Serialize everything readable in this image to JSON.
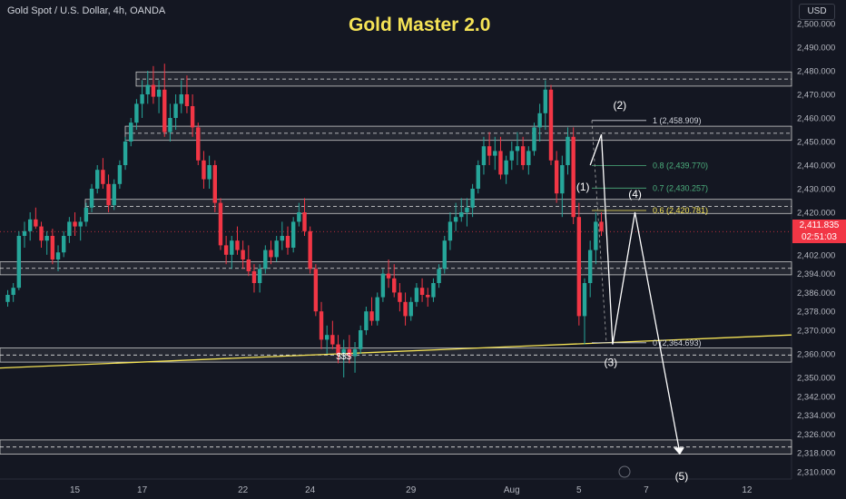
{
  "header": {
    "symbol": "Gold Spot / U.S. Dollar, 4h, OANDA",
    "currency": "USD"
  },
  "title": "Gold Master 2.0",
  "price_badge": {
    "price": "2,411.835",
    "countdown": "02:51:03"
  },
  "colors": {
    "background": "#141722",
    "up": "#26a69a",
    "down": "#f23645",
    "title": "#f5e356",
    "trendline": "#f5e356",
    "zone_border": "#c8c8c8",
    "fib_level": "#4caf7d",
    "fib_highlight": "#f5e356",
    "wave": "#ffffff"
  },
  "chart_data": {
    "type": "candlestick",
    "title": "Gold Master 2.0",
    "xlabel": "",
    "ylabel": "",
    "ylim": [
      2306,
      2504
    ],
    "y_ticks": [
      2310,
      2318,
      2326,
      2334,
      2342,
      2350,
      2360,
      2370,
      2378,
      2386,
      2394,
      2402,
      2410,
      2420,
      2430,
      2440,
      2450,
      2460,
      2470,
      2480,
      2490,
      2500
    ],
    "y_tick_labels": [
      "2,310.000",
      "2,318.000",
      "2,326.000",
      "2,334.000",
      "2,342.000",
      "2,350.000",
      "2,360.000",
      "2,370.000",
      "2,378.000",
      "2,386.000",
      "2,394.000",
      "2,402.000",
      "2,410.000",
      "2,420.000",
      "2,430.000",
      "2,440.000",
      "2,450.000",
      "2,460.000",
      "2,470.000",
      "2,480.000",
      "2,490.000",
      "2,500.000"
    ],
    "x_ticks": [
      {
        "label": "15",
        "index": 12
      },
      {
        "label": "17",
        "index": 24
      },
      {
        "label": "22",
        "index": 42
      },
      {
        "label": "24",
        "index": 54
      },
      {
        "label": "29",
        "index": 72
      },
      {
        "label": "Aug",
        "index": 90
      },
      {
        "label": "5",
        "index": 102
      },
      {
        "label": "7",
        "index": 114
      },
      {
        "label": "12",
        "index": 132
      }
    ],
    "candles": [
      [
        2382,
        2387,
        2380,
        2385
      ],
      [
        2385,
        2390,
        2382,
        2388
      ],
      [
        2388,
        2412,
        2387,
        2410
      ],
      [
        2410,
        2416,
        2405,
        2412
      ],
      [
        2412,
        2420,
        2408,
        2417
      ],
      [
        2417,
        2422,
        2413,
        2414
      ],
      [
        2414,
        2416,
        2405,
        2408
      ],
      [
        2408,
        2412,
        2402,
        2410
      ],
      [
        2410,
        2413,
        2398,
        2400
      ],
      [
        2400,
        2406,
        2395,
        2403
      ],
      [
        2403,
        2412,
        2401,
        2410
      ],
      [
        2410,
        2418,
        2407,
        2416
      ],
      [
        2416,
        2420,
        2410,
        2414
      ],
      [
        2414,
        2418,
        2408,
        2416
      ],
      [
        2416,
        2424,
        2414,
        2422
      ],
      [
        2422,
        2432,
        2420,
        2430
      ],
      [
        2430,
        2440,
        2428,
        2438
      ],
      [
        2438,
        2443,
        2430,
        2432
      ],
      [
        2432,
        2436,
        2420,
        2423
      ],
      [
        2423,
        2434,
        2421,
        2432
      ],
      [
        2432,
        2442,
        2430,
        2440
      ],
      [
        2440,
        2452,
        2438,
        2450
      ],
      [
        2450,
        2460,
        2448,
        2458
      ],
      [
        2458,
        2468,
        2455,
        2466
      ],
      [
        2466,
        2476,
        2460,
        2470
      ],
      [
        2470,
        2480,
        2466,
        2474
      ],
      [
        2474,
        2482,
        2466,
        2469
      ],
      [
        2469,
        2476,
        2462,
        2472
      ],
      [
        2472,
        2483,
        2452,
        2454
      ],
      [
        2454,
        2466,
        2450,
        2460
      ],
      [
        2460,
        2470,
        2455,
        2466
      ],
      [
        2466,
        2476,
        2462,
        2470
      ],
      [
        2470,
        2478,
        2462,
        2465
      ],
      [
        2465,
        2470,
        2452,
        2456
      ],
      [
        2456,
        2458,
        2440,
        2442
      ],
      [
        2442,
        2446,
        2430,
        2434
      ],
      [
        2434,
        2444,
        2430,
        2440
      ],
      [
        2440,
        2442,
        2420,
        2424
      ],
      [
        2424,
        2426,
        2404,
        2406
      ],
      [
        2406,
        2410,
        2398,
        2402
      ],
      [
        2402,
        2410,
        2396,
        2408
      ],
      [
        2408,
        2414,
        2402,
        2404
      ],
      [
        2404,
        2408,
        2396,
        2400
      ],
      [
        2400,
        2406,
        2393,
        2395
      ],
      [
        2395,
        2398,
        2386,
        2390
      ],
      [
        2390,
        2398,
        2386,
        2396
      ],
      [
        2396,
        2406,
        2394,
        2404
      ],
      [
        2404,
        2408,
        2398,
        2401
      ],
      [
        2401,
        2410,
        2399,
        2408
      ],
      [
        2408,
        2416,
        2404,
        2410
      ],
      [
        2410,
        2414,
        2402,
        2405
      ],
      [
        2405,
        2418,
        2403,
        2416
      ],
      [
        2416,
        2424,
        2414,
        2420
      ],
      [
        2420,
        2426,
        2410,
        2412
      ],
      [
        2412,
        2414,
        2394,
        2396
      ],
      [
        2396,
        2398,
        2376,
        2378
      ],
      [
        2378,
        2382,
        2362,
        2366
      ],
      [
        2366,
        2372,
        2360,
        2368
      ],
      [
        2368,
        2374,
        2362,
        2364
      ],
      [
        2364,
        2368,
        2356,
        2360
      ],
      [
        2360,
        2366,
        2350,
        2362
      ],
      [
        2362,
        2368,
        2356,
        2359
      ],
      [
        2359,
        2365,
        2352,
        2362
      ],
      [
        2362,
        2372,
        2360,
        2370
      ],
      [
        2370,
        2380,
        2368,
        2378
      ],
      [
        2378,
        2384,
        2372,
        2374
      ],
      [
        2374,
        2386,
        2372,
        2384
      ],
      [
        2384,
        2396,
        2382,
        2394
      ],
      [
        2394,
        2400,
        2388,
        2392
      ],
      [
        2392,
        2398,
        2384,
        2386
      ],
      [
        2386,
        2390,
        2378,
        2382
      ],
      [
        2382,
        2386,
        2372,
        2376
      ],
      [
        2376,
        2384,
        2374,
        2382
      ],
      [
        2382,
        2390,
        2380,
        2388
      ],
      [
        2388,
        2392,
        2382,
        2385
      ],
      [
        2385,
        2388,
        2380,
        2384
      ],
      [
        2384,
        2392,
        2382,
        2390
      ],
      [
        2390,
        2398,
        2388,
        2396
      ],
      [
        2396,
        2410,
        2394,
        2408
      ],
      [
        2408,
        2420,
        2404,
        2416
      ],
      [
        2416,
        2424,
        2412,
        2418
      ],
      [
        2418,
        2426,
        2416,
        2420
      ],
      [
        2420,
        2426,
        2414,
        2422
      ],
      [
        2422,
        2432,
        2418,
        2430
      ],
      [
        2430,
        2442,
        2428,
        2440
      ],
      [
        2440,
        2452,
        2436,
        2448
      ],
      [
        2448,
        2454,
        2440,
        2444
      ],
      [
        2444,
        2452,
        2438,
        2446
      ],
      [
        2446,
        2452,
        2434,
        2436
      ],
      [
        2436,
        2444,
        2432,
        2442
      ],
      [
        2442,
        2450,
        2438,
        2446
      ],
      [
        2446,
        2454,
        2440,
        2448
      ],
      [
        2448,
        2452,
        2438,
        2440
      ],
      [
        2440,
        2448,
        2436,
        2446
      ],
      [
        2446,
        2458,
        2444,
        2456
      ],
      [
        2456,
        2466,
        2450,
        2462
      ],
      [
        2462,
        2476,
        2455,
        2472
      ],
      [
        2472,
        2474,
        2440,
        2442
      ],
      [
        2442,
        2446,
        2424,
        2428
      ],
      [
        2428,
        2444,
        2418,
        2440
      ],
      [
        2440,
        2456,
        2436,
        2452
      ],
      [
        2452,
        2456,
        2415,
        2418
      ],
      [
        2418,
        2424,
        2372,
        2376
      ],
      [
        2376,
        2392,
        2364,
        2390
      ],
      [
        2390,
        2408,
        2384,
        2404
      ],
      [
        2404,
        2420,
        2398,
        2416
      ],
      [
        2416,
        2420,
        2410,
        2412
      ]
    ],
    "zones": [
      {
        "low": 2473.5,
        "high": 2479.5
      },
      {
        "low": 2450.5,
        "high": 2456.5
      },
      {
        "low": 2419.5,
        "high": 2425.5
      },
      {
        "low": 2393.5,
        "high": 2399.0
      },
      {
        "low": 2356.5,
        "high": 2362.5
      },
      {
        "low": 2317.5,
        "high": 2323.5
      }
    ],
    "fib_levels": [
      {
        "ratio": "1",
        "price": 2458.909,
        "label": "1 (2,458.909)"
      },
      {
        "ratio": "0.8",
        "price": 2439.77,
        "label": "0.8 (2,439.770)"
      },
      {
        "ratio": "0.7",
        "price": 2430.257,
        "label": "0.7 (2,430.257)"
      },
      {
        "ratio": "0.6",
        "price": 2420.781,
        "label": "0.6 (2,420.781)"
      },
      {
        "ratio": "0",
        "price": 2364.693,
        "label": "0 (2,364.693)"
      }
    ],
    "trendline": {
      "from": {
        "index": 0,
        "price": 2354
      },
      "to": {
        "index": 144,
        "price": 2368
      }
    },
    "liquidity_label": {
      "text": "$$$",
      "index": 60,
      "price": 2359
    },
    "waves": [
      {
        "label": "(1)",
        "index": 104,
        "price": 2440
      },
      {
        "label": "(2)",
        "index": 108,
        "price": 2453
      },
      {
        "label": "(3)",
        "index": 108,
        "price": 2364
      },
      {
        "label": "(4)",
        "index": 112,
        "price": 2420
      },
      {
        "label": "(5)",
        "index": 120,
        "price": 2318
      }
    ],
    "wave_path": [
      {
        "index": 104,
        "price": 2440
      },
      {
        "index": 106,
        "price": 2453
      },
      {
        "index": 108,
        "price": 2364
      },
      {
        "index": 112,
        "price": 2420
      },
      {
        "index": 120,
        "price": 2318
      }
    ],
    "last_price": 2411.835
  }
}
